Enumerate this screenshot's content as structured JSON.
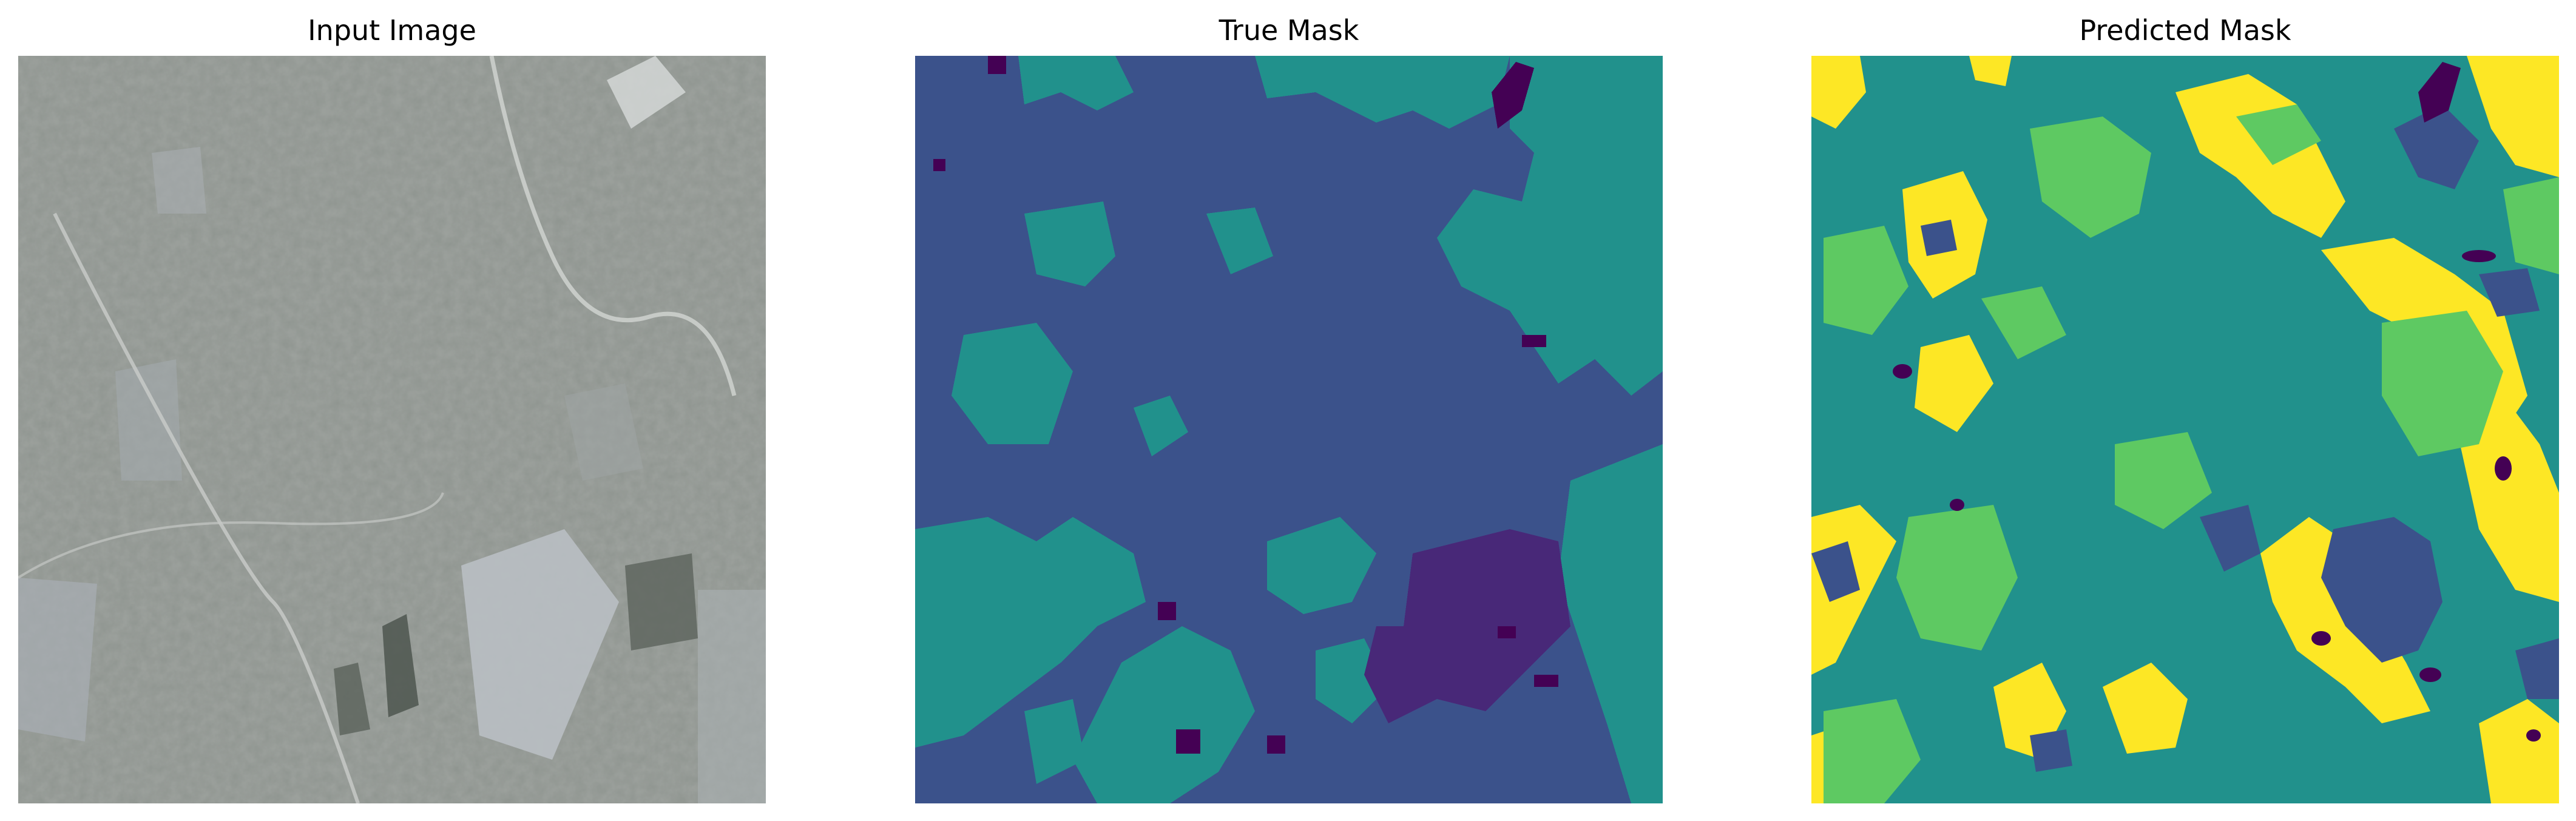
{
  "figure": {
    "panels": [
      {
        "title": "Input Image"
      },
      {
        "title": "True Mask"
      },
      {
        "title": "Predicted Mask"
      }
    ]
  },
  "colors": {
    "background": "#ffffff",
    "viridis_class_0": "#440154",
    "viridis_class_1": "#3b528b",
    "viridis_class_2": "#21918c",
    "viridis_class_3": "#5ec962",
    "viridis_class_4": "#fde725"
  }
}
